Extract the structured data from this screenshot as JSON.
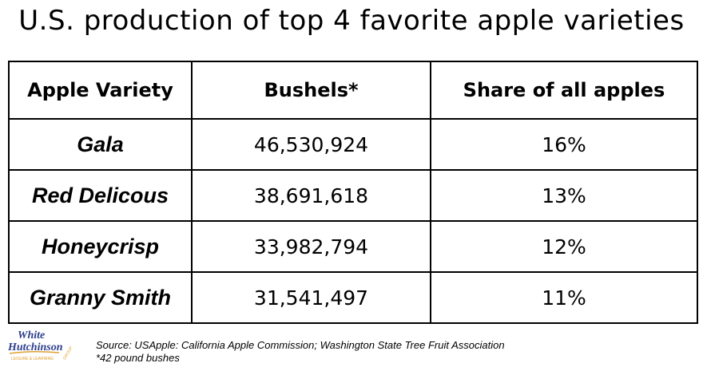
{
  "chart_data": {
    "type": "table",
    "title": "U.S. production of top 4 favorite apple varieties",
    "columns": [
      "Apple Variety",
      "Bushels*",
      "Share of all apples"
    ],
    "rows": [
      {
        "variety": "Gala",
        "bushels": "46,530,924",
        "share": "16%"
      },
      {
        "variety": "Red Delicous",
        "bushels": "38,691,618",
        "share": "13%"
      },
      {
        "variety": "Honeycrisp",
        "bushels": "33,982,794",
        "share": "12%"
      },
      {
        "variety": "Granny Smith",
        "bushels": "31,541,497",
        "share": "11%"
      }
    ]
  },
  "logo": {
    "line1": "White",
    "line2": "Hutchinson",
    "tagline": "LEISURE & LEARNING",
    "group": "GROUP"
  },
  "footer": {
    "source": "Source: USApple: California Apple Commission; Washington State Tree Fruit Association",
    "note": "*42 pound bushes"
  }
}
